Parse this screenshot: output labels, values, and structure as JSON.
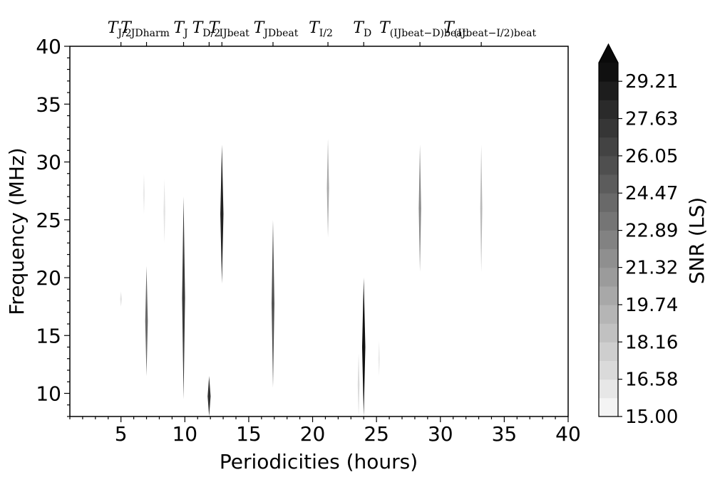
{
  "chart_data": {
    "type": "heatmap",
    "xlabel": "Periodicities (hours)",
    "ylabel": "Frequency (MHz)",
    "xlim": [
      1,
      40
    ],
    "ylim": [
      8,
      40
    ],
    "x_ticks": [
      5,
      10,
      15,
      20,
      25,
      30,
      35,
      40
    ],
    "y_ticks": [
      10,
      15,
      20,
      25,
      30,
      35,
      40
    ],
    "colormap": "greys",
    "colorbar": {
      "label": "SNR (LS)",
      "min": 15.0,
      "max": 30.0,
      "extend": "max",
      "tick_labels": [
        "15.00",
        "16.58",
        "18.16",
        "19.74",
        "21.32",
        "22.89",
        "24.47",
        "26.05",
        "27.63",
        "29.21"
      ],
      "levels": 19
    },
    "period_markers": [
      {
        "base": "T",
        "sub": "J/2",
        "x": 5.0
      },
      {
        "base": "T",
        "sub": "JDharm",
        "x": 7.0
      },
      {
        "base": "T",
        "sub": "J",
        "x": 9.9
      },
      {
        "base": "T",
        "sub": "D/2",
        "x": 11.9
      },
      {
        "base": "T",
        "sub": "IJbeat",
        "x": 12.9
      },
      {
        "base": "T",
        "sub": "JDbeat",
        "x": 16.9
      },
      {
        "base": "T",
        "sub": "I/2",
        "x": 21.2
      },
      {
        "base": "T",
        "sub": "D",
        "x": 24.0
      },
      {
        "base": "T",
        "sub": "(IJbeat−D)beat",
        "x": 28.4
      },
      {
        "base": "T",
        "sub": "(IJbeat−I/2)beat",
        "x": 33.2
      }
    ],
    "features": [
      {
        "x": 5.0,
        "f_min": 17.5,
        "f_max": 18.8,
        "snr": 16.5
      },
      {
        "x": 6.8,
        "f_min": 25.5,
        "f_max": 29.0,
        "snr": 16.0
      },
      {
        "x": 7.0,
        "f_min": 11.5,
        "f_max": 21.0,
        "snr": 24.0
      },
      {
        "x": 8.4,
        "f_min": 23.0,
        "f_max": 28.5,
        "snr": 16.5
      },
      {
        "x": 9.9,
        "f_min": 9.5,
        "f_max": 27.0,
        "snr": 27.0
      },
      {
        "x": 11.9,
        "f_min": 8.0,
        "f_max": 11.5,
        "snr": 27.5
      },
      {
        "x": 12.9,
        "f_min": 19.5,
        "f_max": 31.5,
        "snr": 28.5
      },
      {
        "x": 16.9,
        "f_min": 10.5,
        "f_max": 25.0,
        "snr": 25.5
      },
      {
        "x": 21.2,
        "f_min": 23.5,
        "f_max": 32.0,
        "snr": 20.0
      },
      {
        "x": 23.6,
        "f_min": 8.0,
        "f_max": 13.5,
        "snr": 17.0
      },
      {
        "x": 24.0,
        "f_min": 8.0,
        "f_max": 20.0,
        "snr": 29.5
      },
      {
        "x": 25.2,
        "f_min": 11.5,
        "f_max": 14.5,
        "snr": 16.0
      },
      {
        "x": 28.4,
        "f_min": 20.5,
        "f_max": 31.5,
        "snr": 22.0
      },
      {
        "x": 33.2,
        "f_min": 20.5,
        "f_max": 31.5,
        "snr": 19.0
      }
    ]
  }
}
